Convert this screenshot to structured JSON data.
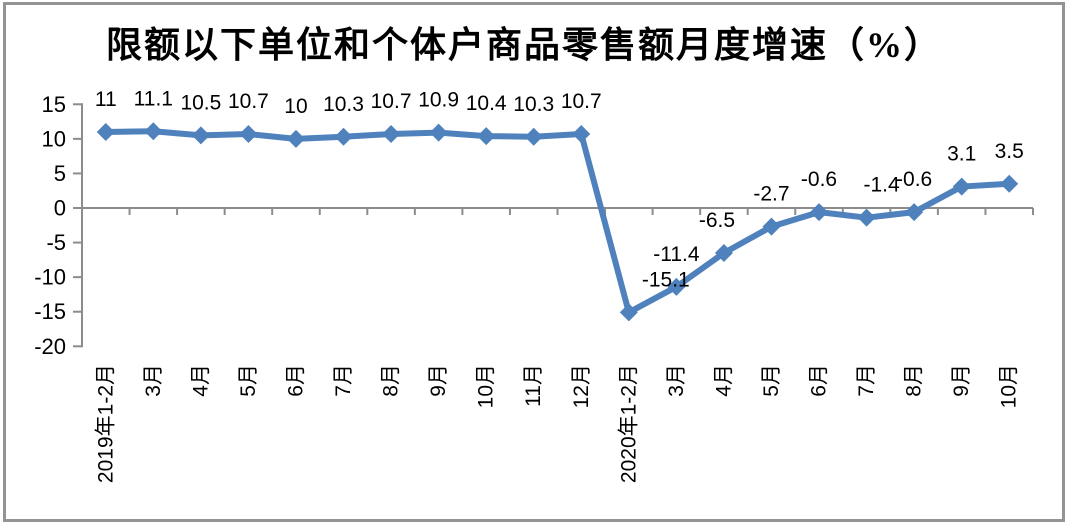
{
  "chart_data": {
    "type": "line",
    "title": "限额以下单位和个体户商品零售额月度增速（%）",
    "categories": [
      "2019年1-2月",
      "3月",
      "4月",
      "5月",
      "6月",
      "7月",
      "8月",
      "9月",
      "10月",
      "11月",
      "12月",
      "2020年1-2月",
      "3月",
      "4月",
      "5月",
      "6月",
      "7月",
      "8月",
      "9月",
      "10月"
    ],
    "series": [
      {
        "name": "月度增速",
        "values": [
          11,
          11.1,
          10.5,
          10.7,
          10,
          10.3,
          10.7,
          10.9,
          10.4,
          10.3,
          10.7,
          -15.1,
          -11.4,
          -6.5,
          -2.7,
          -0.6,
          -1.4,
          -0.6,
          3.1,
          3.5
        ],
        "data_labels": [
          "11",
          "11.1",
          "10.5",
          "10.7",
          "10",
          "10.3",
          "10.7",
          "10.9",
          "10.4",
          "10.3",
          "10.7",
          "-15.1",
          "-11.4",
          "-6.5",
          "-2.7",
          "-0.6",
          "-1.4",
          "-0.6",
          "3.1",
          "3.5"
        ]
      }
    ],
    "xlabel": "",
    "ylabel": "",
    "ylim": [
      -20,
      15
    ],
    "y_ticks": [
      15,
      10,
      5,
      0,
      -5,
      -10,
      -15,
      -20
    ],
    "grid": false,
    "legend": "none",
    "colors": {
      "series": "#4F81BD",
      "axis": "#8C8C8C",
      "text": "#000000",
      "frame": "#949494",
      "background": "#FFFFFF"
    }
  }
}
